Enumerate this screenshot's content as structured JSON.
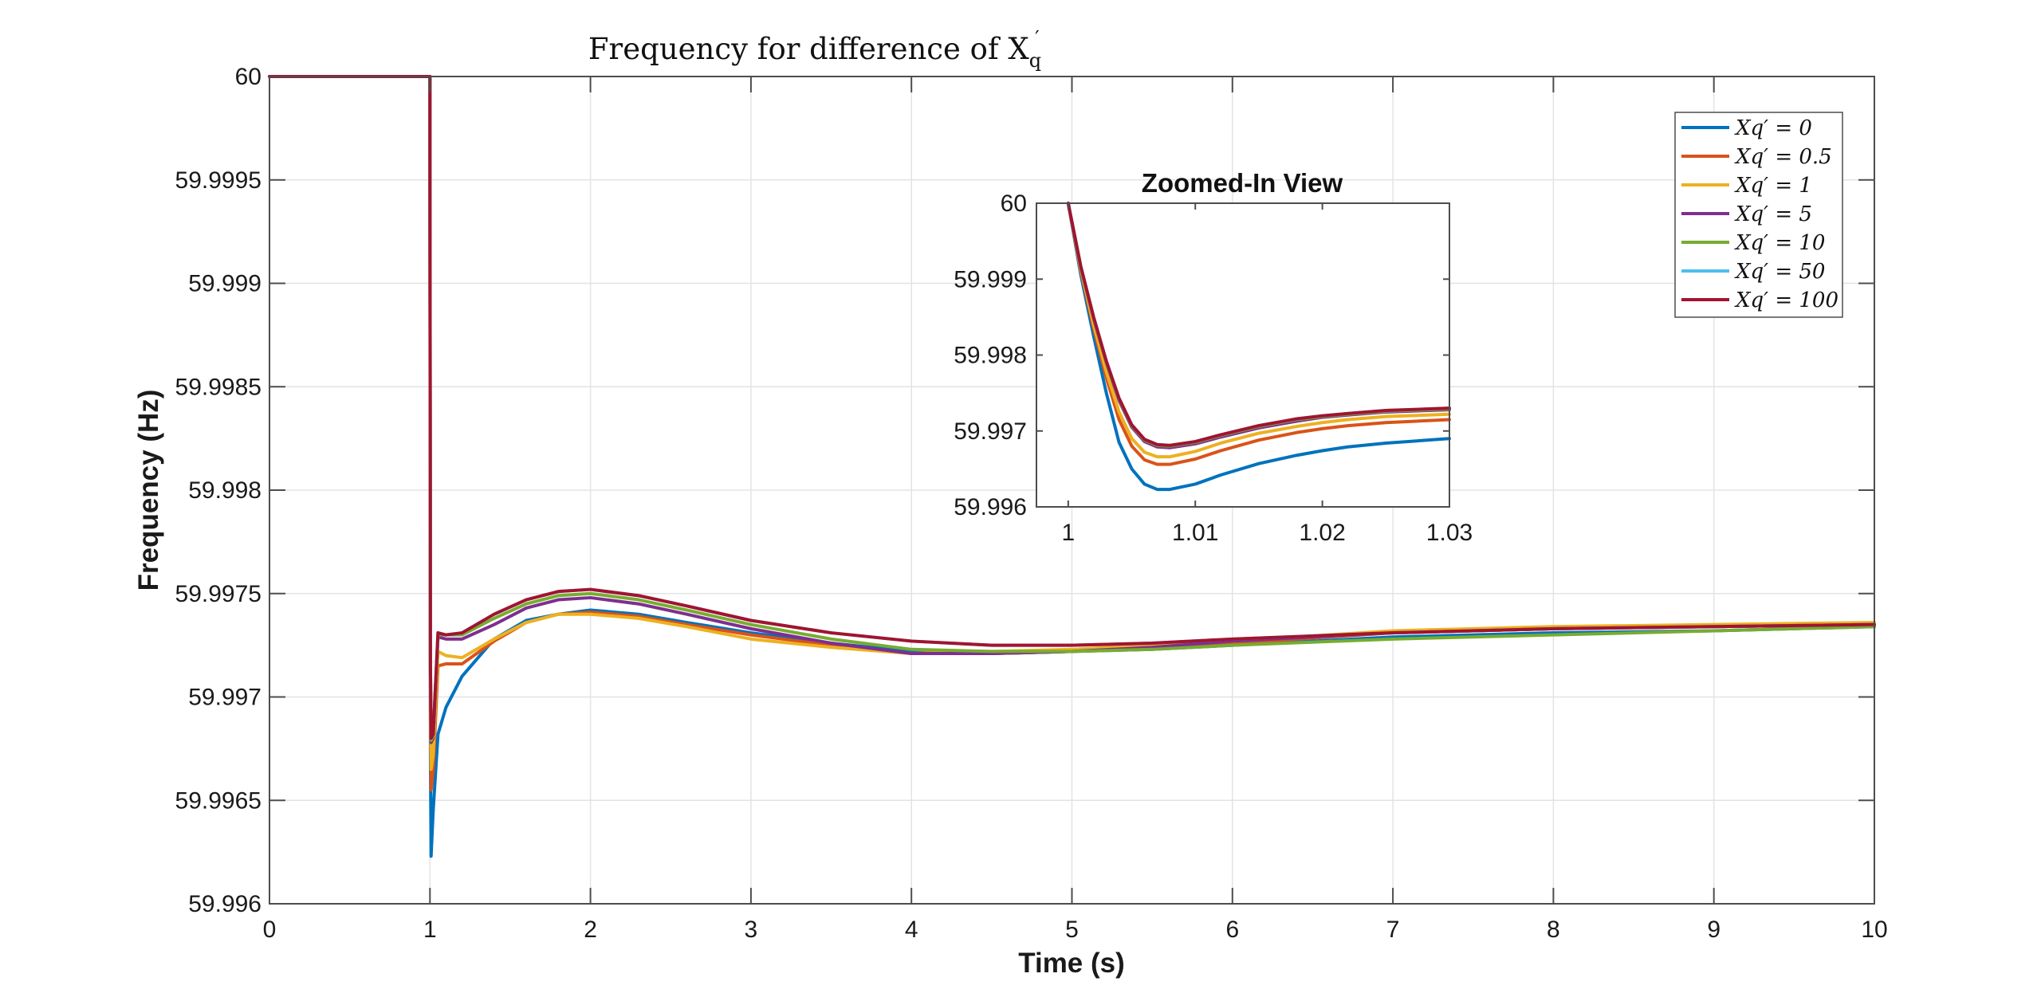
{
  "chart_data": [
    {
      "type": "line",
      "title": "Frequency for difference of X",
      "title_math_sub": "q",
      "title_math_sup": "′",
      "xlabel": "Time (s)",
      "ylabel": "Frequency (Hz)",
      "xlim": [
        0,
        10
      ],
      "ylim": [
        59.996,
        60
      ],
      "x_ticks": [
        "0",
        "1",
        "2",
        "3",
        "4",
        "5",
        "6",
        "7",
        "8",
        "9",
        "10"
      ],
      "y_ticks": [
        "59.996",
        "59.9965",
        "59.997",
        "59.9975",
        "59.998",
        "59.9985",
        "59.999",
        "59.9995",
        "60"
      ],
      "grid": true,
      "legend_position": "top-right",
      "series": [
        {
          "name": "Xq′ = 0",
          "color": "#0072BD",
          "x": [
            0,
            1,
            1,
            1.003,
            1.007,
            1.02,
            1.05,
            1.1,
            1.2,
            1.4,
            1.6,
            1.8,
            2,
            2.3,
            2.6,
            3,
            3.5,
            4,
            4.5,
            5,
            5.5,
            6,
            7,
            8,
            9,
            10
          ],
          "y": [
            60,
            60,
            59.9993,
            59.99672,
            59.99623,
            59.99645,
            59.99682,
            59.99695,
            59.9971,
            59.99728,
            59.99737,
            59.9974,
            59.99742,
            59.9974,
            59.99736,
            59.99731,
            59.99726,
            59.99722,
            59.99721,
            59.99722,
            59.99723,
            59.99725,
            59.99729,
            59.99731,
            59.99732,
            59.99734
          ]
        },
        {
          "name": "Xq′ = 0.5",
          "color": "#D95319",
          "x": [
            0,
            1,
            1,
            1.003,
            1.007,
            1.02,
            1.05,
            1.1,
            1.2,
            1.4,
            1.6,
            1.8,
            2,
            2.3,
            2.6,
            3,
            3.5,
            4,
            4.5,
            5,
            5.5,
            6,
            7,
            8,
            9,
            10
          ],
          "y": [
            60,
            60,
            59.9994,
            59.9969,
            59.99655,
            59.99665,
            59.99715,
            59.99716,
            59.99716,
            59.99727,
            59.99736,
            59.9974,
            59.99741,
            59.99739,
            59.99735,
            59.9973,
            59.99725,
            59.99721,
            59.99721,
            59.99722,
            59.99724,
            59.99726,
            59.99731,
            59.99733,
            59.99734,
            59.99735
          ]
        },
        {
          "name": "Xq′ = 1",
          "color": "#EDB120",
          "x": [
            0,
            1,
            1,
            1.003,
            1.007,
            1.02,
            1.05,
            1.1,
            1.2,
            1.4,
            1.6,
            1.8,
            2,
            2.3,
            2.6,
            3,
            3.5,
            4,
            4.5,
            5,
            5.5,
            6,
            7,
            8,
            9,
            10
          ],
          "y": [
            60,
            60,
            59.9995,
            59.997,
            59.99665,
            59.99672,
            59.99722,
            59.9972,
            59.99719,
            59.99728,
            59.99736,
            59.9974,
            59.9974,
            59.99738,
            59.99734,
            59.99728,
            59.99724,
            59.99721,
            59.99722,
            59.99723,
            59.99725,
            59.99727,
            59.99732,
            59.99734,
            59.99735,
            59.99736
          ]
        },
        {
          "name": "Xq′ = 5",
          "color": "#7E2F8E",
          "x": [
            0,
            1,
            1,
            1.003,
            1.007,
            1.02,
            1.05,
            1.1,
            1.2,
            1.4,
            1.6,
            1.8,
            2,
            2.3,
            2.6,
            3,
            3.5,
            4,
            4.5,
            5,
            5.5,
            6,
            7,
            8,
            9,
            10
          ],
          "y": [
            60,
            60,
            59.9996,
            59.99712,
            59.99678,
            59.9968,
            59.99729,
            59.99728,
            59.99728,
            59.99735,
            59.99743,
            59.99747,
            59.99748,
            59.99745,
            59.9974,
            59.99733,
            59.99726,
            59.99721,
            59.99721,
            59.99722,
            59.99724,
            59.99727,
            59.99731,
            59.99733,
            59.99734,
            59.99735
          ]
        },
        {
          "name": "Xq′ = 10",
          "color": "#77AC30",
          "x": [
            0,
            1,
            1,
            1.003,
            1.007,
            1.02,
            1.05,
            1.1,
            1.2,
            1.4,
            1.6,
            1.8,
            2,
            2.3,
            2.6,
            3,
            3.5,
            4,
            4.5,
            5,
            5.5,
            6,
            7,
            8,
            9,
            10
          ],
          "y": [
            60,
            60,
            59.9996,
            59.99714,
            59.99679,
            59.99681,
            59.9973,
            59.9973,
            59.9973,
            59.99738,
            59.99745,
            59.99749,
            59.9975,
            59.99747,
            59.99742,
            59.99735,
            59.99728,
            59.99723,
            59.99722,
            59.99722,
            59.99723,
            59.99725,
            59.99728,
            59.9973,
            59.99732,
            59.99734
          ]
        },
        {
          "name": "Xq′ = 50",
          "color": "#4DBEEE",
          "x": [
            0,
            1,
            1,
            1.003,
            1.007,
            1.02,
            1.05,
            1.1,
            1.2,
            1.4,
            1.6,
            1.8,
            2,
            2.3,
            2.6,
            3,
            3.5,
            4,
            4.5,
            5,
            5.5,
            6,
            7,
            8,
            9,
            10
          ],
          "y": [
            60,
            60,
            59.9996,
            59.99716,
            59.9968,
            59.99682,
            59.99731,
            59.9973,
            59.99731,
            59.9974,
            59.99747,
            59.99751,
            59.99752,
            59.99749,
            59.99744,
            59.99737,
            59.99731,
            59.99727,
            59.99725,
            59.99725,
            59.99726,
            59.99728,
            59.99731,
            59.99733,
            59.99734,
            59.99735
          ]
        },
        {
          "name": "Xq′ = 100",
          "color": "#A2142F",
          "x": [
            0,
            1,
            1,
            1.003,
            1.007,
            1.02,
            1.05,
            1.1,
            1.2,
            1.4,
            1.6,
            1.8,
            2,
            2.3,
            2.6,
            3,
            3.5,
            4,
            4.5,
            5,
            5.5,
            6,
            7,
            8,
            9,
            10
          ],
          "y": [
            60,
            60,
            59.9996,
            59.99716,
            59.9968,
            59.99682,
            59.99731,
            59.9973,
            59.99731,
            59.9974,
            59.99747,
            59.99751,
            59.99752,
            59.99749,
            59.99744,
            59.99737,
            59.99731,
            59.99727,
            59.99725,
            59.99725,
            59.99726,
            59.99728,
            59.99731,
            59.99733,
            59.99734,
            59.99735
          ]
        }
      ]
    },
    {
      "type": "line",
      "title": "Zoomed-In View",
      "xlim": [
        0.9975,
        1.03
      ],
      "ylim": [
        59.996,
        60
      ],
      "x_ticks": [
        "1",
        "1.01",
        "1.02",
        "1.03"
      ],
      "y_ticks": [
        "59.996",
        "59.997",
        "59.998",
        "59.999",
        "60"
      ],
      "grid": false,
      "series": [
        {
          "name": "Xq′ = 0",
          "color": "#0072BD",
          "x": [
            1,
            1.001,
            1.002,
            1.003,
            1.004,
            1.005,
            1.006,
            1.007,
            1.008,
            1.01,
            1.012,
            1.015,
            1.018,
            1.02,
            1.022,
            1.025,
            1.03
          ],
          "y": [
            60,
            59.99905,
            59.99825,
            59.9975,
            59.99685,
            59.9965,
            59.9963,
            59.99623,
            59.99623,
            59.9963,
            59.99642,
            59.99657,
            59.99668,
            59.99674,
            59.99679,
            59.99684,
            59.9969
          ]
        },
        {
          "name": "Xq′ = 0.5",
          "color": "#D95319",
          "x": [
            1,
            1.001,
            1.002,
            1.003,
            1.004,
            1.005,
            1.006,
            1.007,
            1.008,
            1.01,
            1.012,
            1.015,
            1.018,
            1.02,
            1.022,
            1.025,
            1.03
          ],
          "y": [
            60,
            59.9991,
            59.99835,
            59.9977,
            59.99715,
            59.9968,
            59.99662,
            59.99656,
            59.99656,
            59.99663,
            59.99674,
            59.99688,
            59.99698,
            59.99703,
            59.99707,
            59.99711,
            59.99715
          ]
        },
        {
          "name": "Xq′ = 1",
          "color": "#EDB120",
          "x": [
            1,
            1.001,
            1.002,
            1.003,
            1.004,
            1.005,
            1.006,
            1.007,
            1.008,
            1.01,
            1.012,
            1.015,
            1.018,
            1.02,
            1.022,
            1.025,
            1.03
          ],
          "y": [
            60,
            59.99912,
            59.9984,
            59.99778,
            59.99725,
            59.9969,
            59.99672,
            59.99666,
            59.99666,
            59.99673,
            59.99684,
            59.99697,
            59.99706,
            59.99711,
            59.99715,
            59.99719,
            59.99722
          ]
        },
        {
          "name": "Xq′ = 5",
          "color": "#7E2F8E",
          "x": [
            1,
            1.001,
            1.002,
            1.003,
            1.004,
            1.005,
            1.006,
            1.007,
            1.008,
            1.01,
            1.012,
            1.015,
            1.018,
            1.02,
            1.022,
            1.025,
            1.03
          ],
          "y": [
            60,
            59.99915,
            59.99848,
            59.9979,
            59.9974,
            59.99705,
            59.99686,
            59.99679,
            59.99678,
            59.99683,
            59.99692,
            59.99704,
            59.99713,
            59.99718,
            59.99721,
            59.99725,
            59.99728
          ]
        },
        {
          "name": "Xq′ = 10",
          "color": "#77AC30",
          "x": [
            1,
            1.001,
            1.002,
            1.003,
            1.004,
            1.005,
            1.006,
            1.007,
            1.008,
            1.01,
            1.012,
            1.015,
            1.018,
            1.02,
            1.022,
            1.025,
            1.03
          ],
          "y": [
            60,
            59.99916,
            59.99849,
            59.99791,
            59.99742,
            59.99707,
            59.99688,
            59.99681,
            59.9968,
            59.99685,
            59.99694,
            59.99706,
            59.99715,
            59.99719,
            59.99722,
            59.99726,
            59.99729
          ]
        },
        {
          "name": "Xq′ = 50",
          "color": "#4DBEEE",
          "x": [
            1,
            1.001,
            1.002,
            1.003,
            1.004,
            1.005,
            1.006,
            1.007,
            1.008,
            1.01,
            1.012,
            1.015,
            1.018,
            1.02,
            1.022,
            1.025,
            1.03
          ],
          "y": [
            60,
            59.99916,
            59.9985,
            59.99792,
            59.99743,
            59.99708,
            59.99689,
            59.99682,
            59.99681,
            59.99686,
            59.99695,
            59.99707,
            59.99716,
            59.9972,
            59.99723,
            59.99727,
            59.9973
          ]
        },
        {
          "name": "Xq′ = 100",
          "color": "#A2142F",
          "x": [
            1,
            1.001,
            1.002,
            1.003,
            1.004,
            1.005,
            1.006,
            1.007,
            1.008,
            1.01,
            1.012,
            1.015,
            1.018,
            1.02,
            1.022,
            1.025,
            1.03
          ],
          "y": [
            60,
            59.99916,
            59.9985,
            59.99792,
            59.99743,
            59.99708,
            59.99689,
            59.99682,
            59.99681,
            59.99686,
            59.99695,
            59.99707,
            59.99716,
            59.9972,
            59.99723,
            59.99727,
            59.9973
          ]
        }
      ]
    }
  ],
  "legend": {
    "entries": [
      "Xq′ = 0",
      "Xq′ = 0.5",
      "Xq′ = 1",
      "Xq′ = 5",
      "Xq′ = 10",
      "Xq′ = 50",
      "Xq′ = 100"
    ]
  }
}
